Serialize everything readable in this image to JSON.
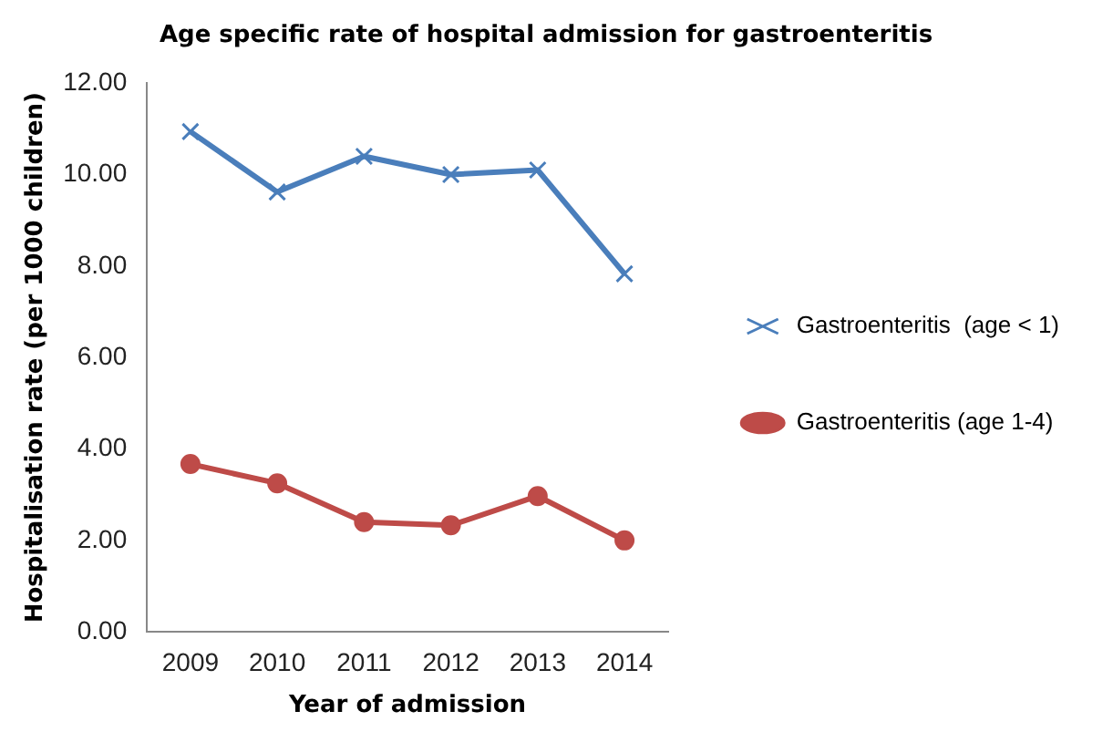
{
  "chart_data": {
    "type": "line",
    "title": "Age specific rate of hospital admission for gastroenteritis",
    "xlabel": "Year of admission",
    "ylabel": "Hospitalisation rate (per 1000 children)",
    "categories": [
      "2009",
      "2010",
      "2011",
      "2012",
      "2013",
      "2014"
    ],
    "series": [
      {
        "name": "Gastroenteritis  (age < 1)",
        "color": "#4a7ebb",
        "marker": "cross",
        "values": [
          10.94,
          9.62,
          10.4,
          10.0,
          10.1,
          7.83
        ]
      },
      {
        "name": "Gastroenteritis (age 1-4)",
        "color": "#be4b48",
        "marker": "circle",
        "values": [
          3.67,
          3.25,
          2.4,
          2.33,
          2.97,
          2.0
        ]
      }
    ],
    "ylim": [
      0,
      12
    ],
    "yticks": [
      {
        "value": 0,
        "label": "0.00"
      },
      {
        "value": 2,
        "label": "2.00"
      },
      {
        "value": 4,
        "label": "4.00"
      },
      {
        "value": 6,
        "label": "6.00"
      },
      {
        "value": 8,
        "label": "8.00"
      },
      {
        "value": 10,
        "label": "10.00"
      },
      {
        "value": 12,
        "label": "12.00"
      }
    ],
    "grid": false,
    "legend": "right"
  }
}
